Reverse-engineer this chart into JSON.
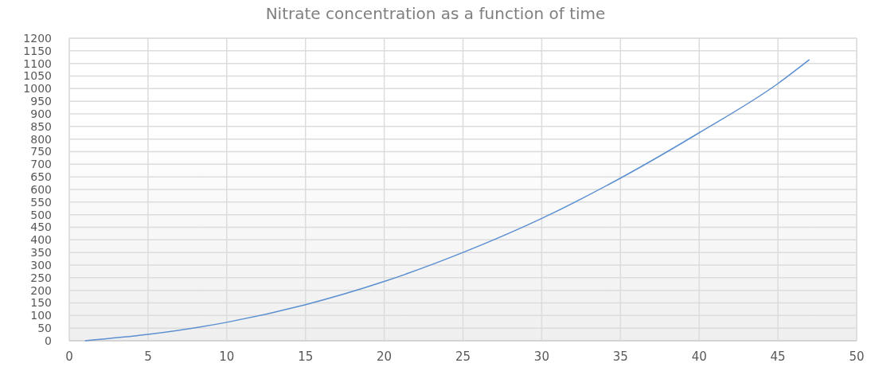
{
  "chart_data": {
    "type": "line",
    "title": "Nitrate concentration as a function of time",
    "x": [
      1,
      5,
      10,
      15,
      20,
      25,
      30,
      35,
      40,
      45,
      47
    ],
    "series": [
      {
        "color": "#5b8fd0",
        "values": [
          0,
          25,
          73,
          143,
          235,
          350,
          485,
          645,
          825,
          1020,
          1115
        ]
      }
    ],
    "xlim": [
      0,
      50
    ],
    "xticks": [
      0,
      5,
      10,
      15,
      20,
      25,
      30,
      35,
      40,
      45,
      50
    ],
    "ylim": [
      0,
      1200
    ],
    "yticks": [
      0,
      50,
      100,
      150,
      200,
      250,
      300,
      350,
      400,
      450,
      500,
      550,
      600,
      650,
      700,
      750,
      800,
      850,
      900,
      950,
      1000,
      1050,
      1100,
      1150,
      1200
    ],
    "grid": true,
    "marker": "none",
    "line_style": "solid"
  }
}
